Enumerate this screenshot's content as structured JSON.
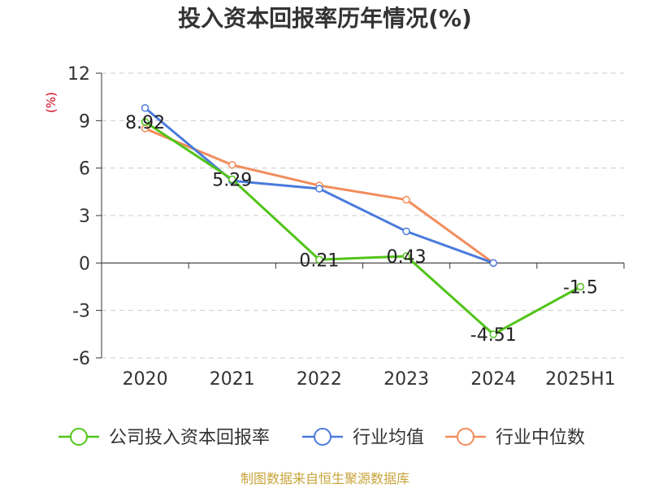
{
  "chart_data": {
    "type": "line",
    "title": "投入资本回报率历年情况(%)",
    "ylabel": "(%)",
    "xlabel": "",
    "categories": [
      "2020",
      "2021",
      "2022",
      "2023",
      "2024",
      "2025H1"
    ],
    "ylim": [
      -6,
      12
    ],
    "yticks": [
      12,
      9,
      6,
      3,
      0,
      -3,
      -6
    ],
    "grid": true,
    "legend_position": "bottom",
    "series": [
      {
        "name": "公司投入资本回报率",
        "color": "#52c41a",
        "values": [
          8.92,
          5.29,
          0.21,
          0.43,
          -4.51,
          -1.5
        ],
        "labels": [
          "8.92",
          "5.29",
          "0.21",
          "0.43",
          "-4.51",
          "-1.5"
        ]
      },
      {
        "name": "行业均值",
        "color": "#4a7bdc",
        "values": [
          9.8,
          5.2,
          4.7,
          2.0,
          0.0,
          null
        ]
      },
      {
        "name": "行业中位数",
        "color": "#f28c5b",
        "values": [
          8.5,
          6.2,
          4.9,
          4.0,
          0.0,
          null
        ]
      }
    ],
    "source": "制图数据来自恒生聚源数据库"
  }
}
